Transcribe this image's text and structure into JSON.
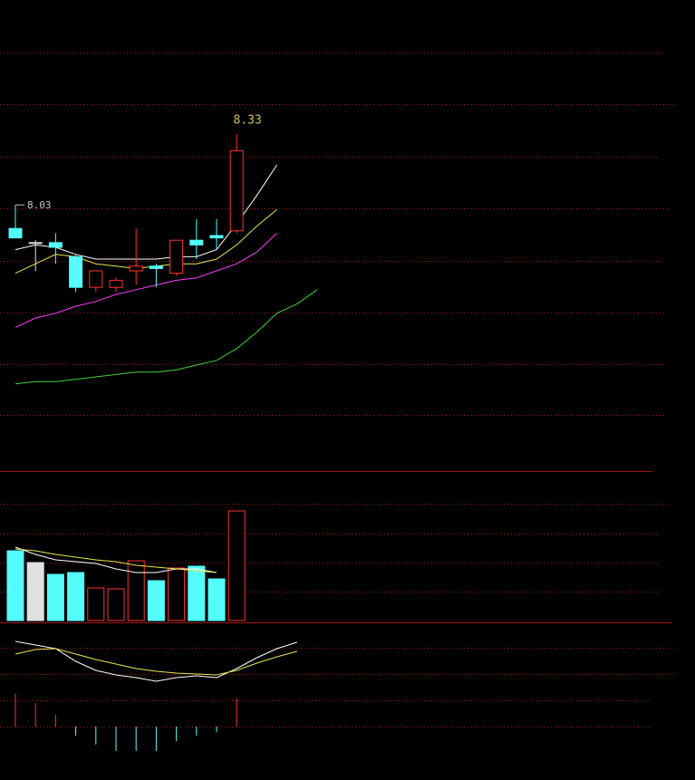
{
  "chart_data": {
    "type": "candlestick",
    "categories": [
      null,
      null,
      null,
      null,
      null,
      null,
      null,
      null,
      null,
      null,
      null,
      null,
      null,
      null,
      null,
      null
    ],
    "open": [
      7.93,
      7.87,
      7.87,
      7.81,
      7.68,
      7.68,
      7.75,
      7.77,
      7.74,
      7.88,
      7.9,
      7.92,
      null,
      null,
      null,
      null
    ],
    "high": [
      8.03,
      7.88,
      7.91,
      7.82,
      7.75,
      7.72,
      7.93,
      7.78,
      7.88,
      7.97,
      7.97,
      8.33,
      null,
      null,
      null,
      null
    ],
    "low": [
      7.89,
      7.75,
      7.78,
      7.66,
      7.66,
      7.66,
      7.69,
      7.68,
      7.73,
      7.8,
      7.84,
      7.91,
      null,
      null,
      null,
      null
    ],
    "close": [
      7.89,
      7.87,
      7.85,
      7.68,
      7.75,
      7.71,
      7.77,
      7.76,
      7.88,
      7.86,
      7.89,
      8.26,
      null,
      null,
      null,
      null
    ],
    "ylim": [
      6.9,
      8.9
    ],
    "up_color": "#ff3232",
    "down_color": "#54fcfc",
    "flat_color": "#e0e0e0",
    "ma_lines": [
      {
        "color": "#ffffff",
        "values": [
          7.84,
          7.86,
          7.85,
          7.82,
          7.8,
          7.8,
          7.8,
          7.8,
          7.81,
          7.81,
          7.84,
          7.95,
          8.07,
          8.2,
          null,
          null
        ]
      },
      {
        "color": "#e6e64c",
        "values": [
          7.74,
          7.78,
          7.82,
          7.81,
          7.78,
          7.77,
          7.76,
          7.77,
          7.78,
          7.78,
          7.8,
          7.86,
          7.94,
          8.01,
          null,
          null
        ]
      },
      {
        "color": "#ff3cff",
        "values": [
          7.51,
          7.55,
          7.57,
          7.6,
          7.62,
          7.65,
          7.67,
          7.69,
          7.71,
          7.72,
          7.75,
          7.78,
          7.83,
          7.91,
          null,
          null
        ]
      },
      {
        "color": "#3cd23c",
        "values": [
          7.27,
          7.28,
          7.28,
          7.29,
          7.3,
          7.31,
          7.32,
          7.32,
          7.33,
          7.35,
          7.37,
          7.42,
          7.49,
          7.57,
          7.61,
          7.67
        ]
      }
    ],
    "volume": {
      "values": [
        77,
        64,
        51,
        53,
        36,
        35,
        66,
        44,
        58,
        60,
        46,
        121,
        null,
        null,
        null,
        null
      ],
      "ylim": [
        0,
        165
      ],
      "ma_lines": [
        {
          "color": "#ffffff",
          "values": [
            81,
            73,
            67,
            65,
            63,
            57,
            53,
            53,
            57,
            57,
            53,
            null,
            null,
            null,
            null,
            null
          ]
        },
        {
          "color": "#e6e64c",
          "values": [
            79,
            77,
            73,
            70,
            67,
            65,
            61,
            59,
            57,
            55,
            53,
            null,
            null,
            null,
            null,
            null
          ]
        }
      ]
    },
    "macd": {
      "ylim": [
        -0.059,
        0.115
      ],
      "histogram": [
        0.036,
        0.026,
        0.013,
        -0.01,
        -0.02,
        -0.027,
        -0.027,
        -0.027,
        -0.016,
        -0.01,
        -0.006,
        0.031,
        null,
        null,
        null,
        null
      ],
      "lines": [
        {
          "color": "#ffffff",
          "values": [
            0.094,
            0.09,
            0.086,
            0.072,
            0.062,
            0.057,
            0.054,
            0.05,
            0.054,
            0.056,
            0.054,
            0.064,
            0.076,
            0.086,
            0.093,
            null
          ]
        },
        {
          "color": "#e6e64c",
          "values": [
            0.08,
            0.085,
            0.086,
            0.08,
            0.074,
            0.069,
            0.064,
            0.061,
            0.059,
            0.058,
            0.057,
            0.062,
            0.07,
            0.077,
            0.083,
            null
          ]
        }
      ]
    }
  }
}
